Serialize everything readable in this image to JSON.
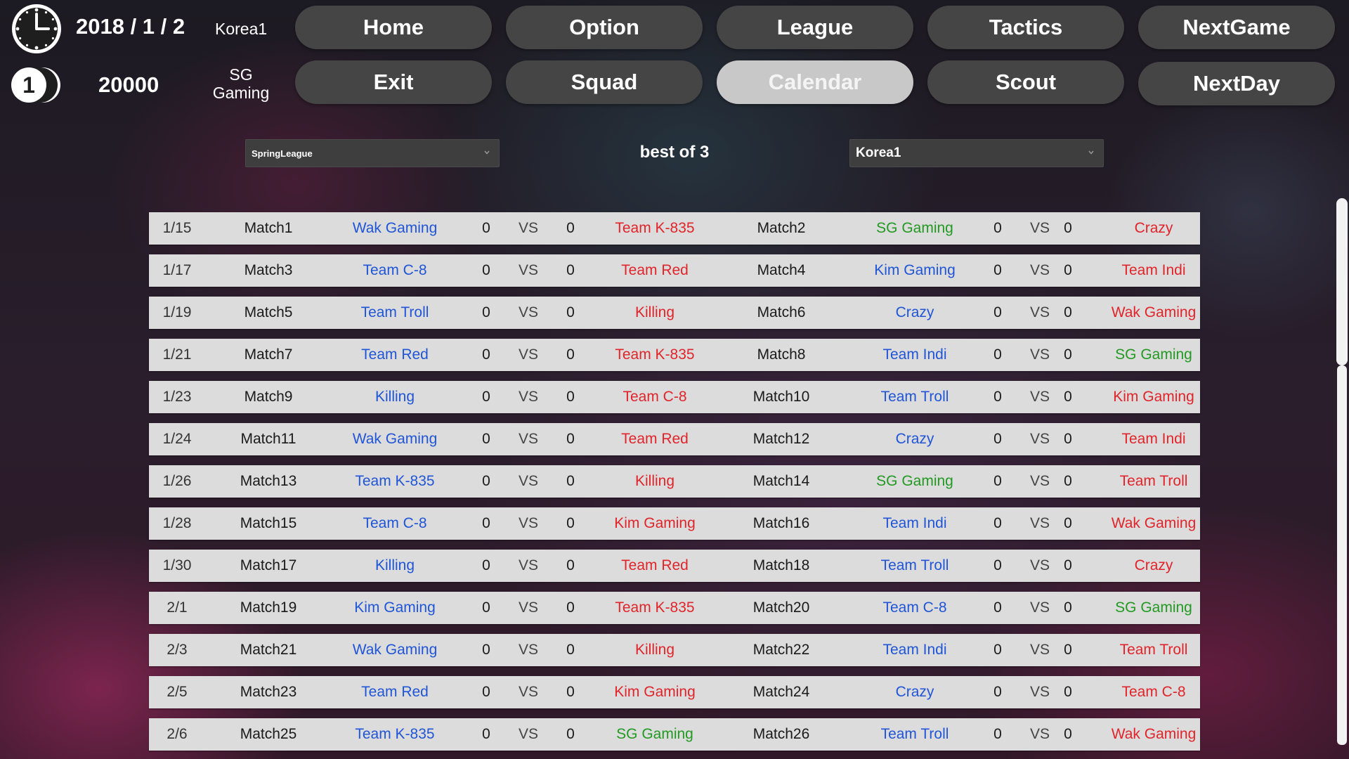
{
  "status": {
    "date": "2018 / 1 / 2",
    "league": "Korea1",
    "round": "1",
    "money": "20000",
    "team": "SG Gaming"
  },
  "nav": {
    "home": "Home",
    "option": "Option",
    "league": "League",
    "tactics": "Tactics",
    "next_game": "NextGame",
    "exit": "Exit",
    "squad": "Squad",
    "calendar": "Calendar",
    "scout": "Scout",
    "next_day": "NextDay",
    "active": "Calendar"
  },
  "filters": {
    "season": "SpringLeague",
    "format": "best of 3",
    "division": "Korea1"
  },
  "colors": {
    "home_team": "#1f55d6",
    "away_team": "#e0242a",
    "own_team": "#229922",
    "button": "#454545",
    "button_active": "#c8c8c8",
    "row": "#dcdcdc"
  },
  "schedule": {
    "vs_label": "VS",
    "rows": [
      {
        "date": "1/15",
        "m1": "Match1",
        "t1a": "Wak Gaming",
        "s1a": "0",
        "s1b": "0",
        "t1b": "Team K-835",
        "m2": "Match2",
        "t2a": "SG Gaming",
        "s2a": "0",
        "s2b": "0",
        "t2b": "Crazy"
      },
      {
        "date": "1/17",
        "m1": "Match3",
        "t1a": "Team C-8",
        "s1a": "0",
        "s1b": "0",
        "t1b": "Team Red",
        "m2": "Match4",
        "t2a": "Kim Gaming",
        "s2a": "0",
        "s2b": "0",
        "t2b": "Team Indi"
      },
      {
        "date": "1/19",
        "m1": "Match5",
        "t1a": "Team Troll",
        "s1a": "0",
        "s1b": "0",
        "t1b": "Killing",
        "m2": "Match6",
        "t2a": "Crazy",
        "s2a": "0",
        "s2b": "0",
        "t2b": "Wak Gaming"
      },
      {
        "date": "1/21",
        "m1": "Match7",
        "t1a": "Team Red",
        "s1a": "0",
        "s1b": "0",
        "t1b": "Team K-835",
        "m2": "Match8",
        "t2a": "Team Indi",
        "s2a": "0",
        "s2b": "0",
        "t2b": "SG Gaming"
      },
      {
        "date": "1/23",
        "m1": "Match9",
        "t1a": "Killing",
        "s1a": "0",
        "s1b": "0",
        "t1b": "Team C-8",
        "m2": "Match10",
        "t2a": "Team Troll",
        "s2a": "0",
        "s2b": "0",
        "t2b": "Kim Gaming"
      },
      {
        "date": "1/24",
        "m1": "Match11",
        "t1a": "Wak Gaming",
        "s1a": "0",
        "s1b": "0",
        "t1b": "Team Red",
        "m2": "Match12",
        "t2a": "Crazy",
        "s2a": "0",
        "s2b": "0",
        "t2b": "Team Indi"
      },
      {
        "date": "1/26",
        "m1": "Match13",
        "t1a": "Team K-835",
        "s1a": "0",
        "s1b": "0",
        "t1b": "Killing",
        "m2": "Match14",
        "t2a": "SG Gaming",
        "s2a": "0",
        "s2b": "0",
        "t2b": "Team Troll"
      },
      {
        "date": "1/28",
        "m1": "Match15",
        "t1a": "Team C-8",
        "s1a": "0",
        "s1b": "0",
        "t1b": "Kim Gaming",
        "m2": "Match16",
        "t2a": "Team Indi",
        "s2a": "0",
        "s2b": "0",
        "t2b": "Wak Gaming"
      },
      {
        "date": "1/30",
        "m1": "Match17",
        "t1a": "Killing",
        "s1a": "0",
        "s1b": "0",
        "t1b": "Team Red",
        "m2": "Match18",
        "t2a": "Team Troll",
        "s2a": "0",
        "s2b": "0",
        "t2b": "Crazy"
      },
      {
        "date": "2/1",
        "m1": "Match19",
        "t1a": "Kim Gaming",
        "s1a": "0",
        "s1b": "0",
        "t1b": "Team K-835",
        "m2": "Match20",
        "t2a": "Team C-8",
        "s2a": "0",
        "s2b": "0",
        "t2b": "SG Gaming"
      },
      {
        "date": "2/3",
        "m1": "Match21",
        "t1a": "Wak Gaming",
        "s1a": "0",
        "s1b": "0",
        "t1b": "Killing",
        "m2": "Match22",
        "t2a": "Team Indi",
        "s2a": "0",
        "s2b": "0",
        "t2b": "Team Troll"
      },
      {
        "date": "2/5",
        "m1": "Match23",
        "t1a": "Team Red",
        "s1a": "0",
        "s1b": "0",
        "t1b": "Kim Gaming",
        "m2": "Match24",
        "t2a": "Crazy",
        "s2a": "0",
        "s2b": "0",
        "t2b": "Team C-8"
      },
      {
        "date": "2/6",
        "m1": "Match25",
        "t1a": "Team K-835",
        "s1a": "0",
        "s1b": "0",
        "t1b": "SG Gaming",
        "m2": "Match26",
        "t2a": "Team Troll",
        "s2a": "0",
        "s2b": "0",
        "t2b": "Wak Gaming"
      }
    ]
  }
}
